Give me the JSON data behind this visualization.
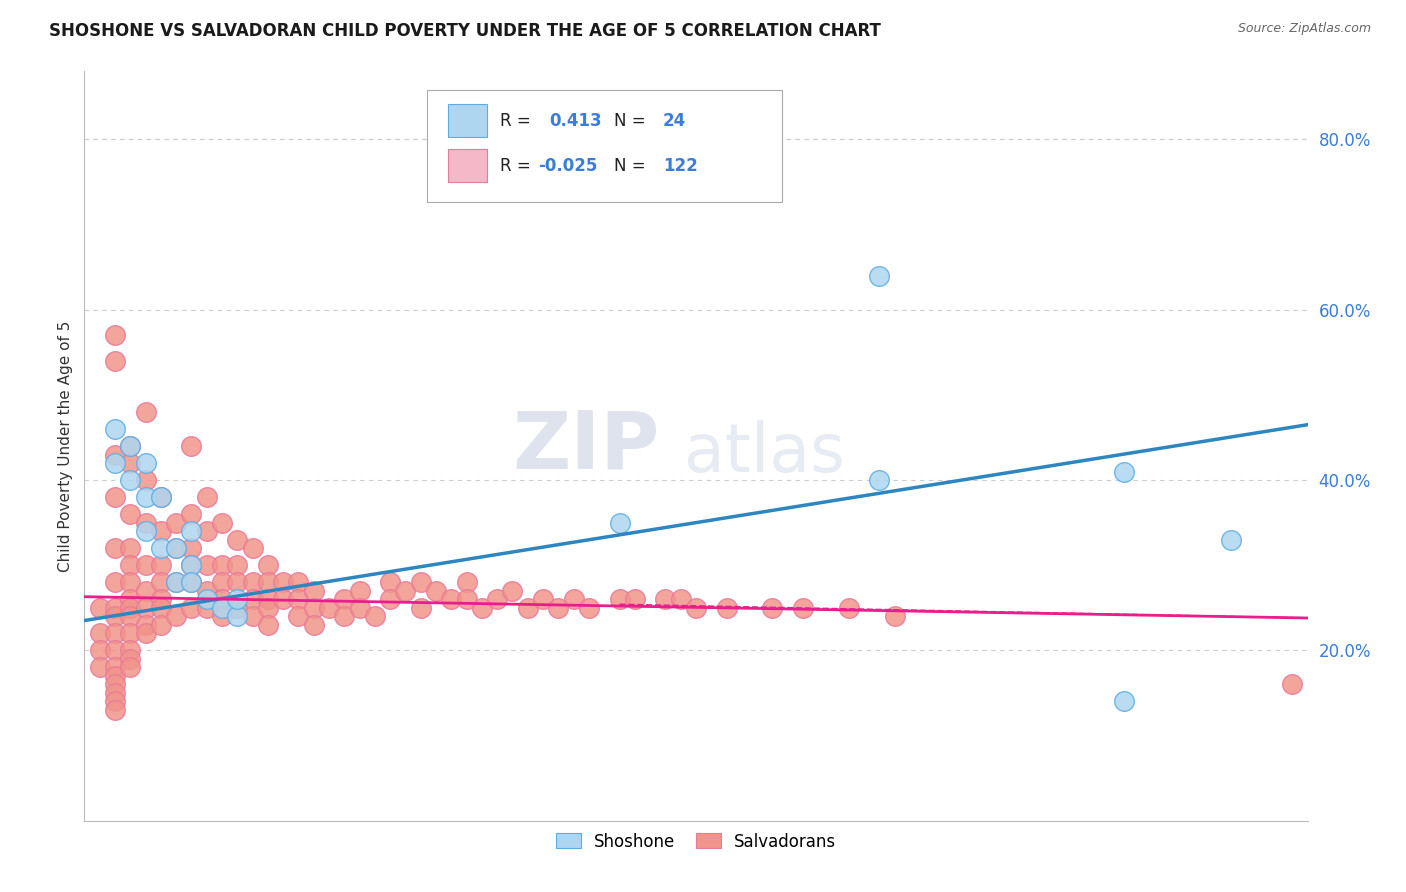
{
  "title": "SHOSHONE VS SALVADORAN CHILD POVERTY UNDER THE AGE OF 5 CORRELATION CHART",
  "source": "Source: ZipAtlas.com",
  "ylabel": "Child Poverty Under the Age of 5",
  "ylabel_right_ticks": [
    "20.0%",
    "40.0%",
    "60.0%",
    "80.0%"
  ],
  "ylabel_right_vals": [
    0.2,
    0.4,
    0.6,
    0.8
  ],
  "xmin": 0.0,
  "xmax": 0.8,
  "ymin": 0.0,
  "ymax": 0.88,
  "shoshone_color": "#AED6F1",
  "salvadoran_color": "#F1948A",
  "shoshone_edge_color": "#5DADE2",
  "salvadoran_edge_color": "#E87A9A",
  "shoshone_line_color": "#2E86C1",
  "salvadoran_line_color": "#E91E8C",
  "R_shoshone": 0.413,
  "N_shoshone": 24,
  "R_salvadoran": -0.025,
  "N_salvadoran": 122,
  "legend_R1": "0.413",
  "legend_N1": "24",
  "legend_R2": "-0.025",
  "legend_N2": "122",
  "shoshone_x": [
    0.02,
    0.02,
    0.03,
    0.03,
    0.04,
    0.04,
    0.04,
    0.05,
    0.05,
    0.06,
    0.06,
    0.07,
    0.07,
    0.07,
    0.08,
    0.09,
    0.1,
    0.1,
    0.35,
    0.52,
    0.52,
    0.68,
    0.68,
    0.75
  ],
  "shoshone_y": [
    0.46,
    0.42,
    0.44,
    0.4,
    0.38,
    0.42,
    0.34,
    0.38,
    0.32,
    0.32,
    0.28,
    0.3,
    0.34,
    0.28,
    0.26,
    0.25,
    0.24,
    0.26,
    0.35,
    0.64,
    0.4,
    0.41,
    0.14,
    0.33
  ],
  "salvadoran_x": [
    0.01,
    0.01,
    0.01,
    0.01,
    0.02,
    0.02,
    0.02,
    0.02,
    0.02,
    0.02,
    0.02,
    0.02,
    0.02,
    0.02,
    0.02,
    0.02,
    0.02,
    0.02,
    0.02,
    0.02,
    0.03,
    0.03,
    0.03,
    0.03,
    0.03,
    0.03,
    0.03,
    0.03,
    0.03,
    0.03,
    0.03,
    0.03,
    0.03,
    0.04,
    0.04,
    0.04,
    0.04,
    0.04,
    0.04,
    0.04,
    0.04,
    0.05,
    0.05,
    0.05,
    0.05,
    0.05,
    0.05,
    0.05,
    0.06,
    0.06,
    0.06,
    0.06,
    0.07,
    0.07,
    0.07,
    0.07,
    0.07,
    0.07,
    0.08,
    0.08,
    0.08,
    0.08,
    0.08,
    0.09,
    0.09,
    0.09,
    0.09,
    0.09,
    0.1,
    0.1,
    0.1,
    0.1,
    0.11,
    0.11,
    0.11,
    0.11,
    0.12,
    0.12,
    0.12,
    0.12,
    0.12,
    0.13,
    0.13,
    0.14,
    0.14,
    0.14,
    0.15,
    0.15,
    0.15,
    0.16,
    0.17,
    0.17,
    0.18,
    0.18,
    0.19,
    0.2,
    0.2,
    0.21,
    0.22,
    0.22,
    0.23,
    0.24,
    0.25,
    0.25,
    0.26,
    0.27,
    0.28,
    0.29,
    0.3,
    0.31,
    0.32,
    0.33,
    0.35,
    0.36,
    0.38,
    0.39,
    0.4,
    0.42,
    0.45,
    0.47,
    0.5,
    0.53,
    0.79
  ],
  "salvadoran_y": [
    0.25,
    0.22,
    0.2,
    0.18,
    0.57,
    0.54,
    0.43,
    0.38,
    0.32,
    0.28,
    0.25,
    0.24,
    0.22,
    0.2,
    0.18,
    0.17,
    0.16,
    0.15,
    0.14,
    0.13,
    0.44,
    0.42,
    0.36,
    0.32,
    0.3,
    0.28,
    0.26,
    0.25,
    0.24,
    0.22,
    0.2,
    0.19,
    0.18,
    0.48,
    0.4,
    0.35,
    0.3,
    0.27,
    0.25,
    0.23,
    0.22,
    0.38,
    0.34,
    0.3,
    0.28,
    0.26,
    0.25,
    0.23,
    0.35,
    0.32,
    0.28,
    0.24,
    0.44,
    0.36,
    0.32,
    0.3,
    0.28,
    0.25,
    0.38,
    0.34,
    0.3,
    0.27,
    0.25,
    0.35,
    0.3,
    0.28,
    0.26,
    0.24,
    0.33,
    0.3,
    0.28,
    0.25,
    0.32,
    0.28,
    0.26,
    0.24,
    0.3,
    0.28,
    0.26,
    0.25,
    0.23,
    0.28,
    0.26,
    0.28,
    0.26,
    0.24,
    0.27,
    0.25,
    0.23,
    0.25,
    0.26,
    0.24,
    0.27,
    0.25,
    0.24,
    0.28,
    0.26,
    0.27,
    0.28,
    0.25,
    0.27,
    0.26,
    0.28,
    0.26,
    0.25,
    0.26,
    0.27,
    0.25,
    0.26,
    0.25,
    0.26,
    0.25,
    0.26,
    0.26,
    0.26,
    0.26,
    0.25,
    0.25,
    0.25,
    0.25,
    0.25,
    0.24,
    0.16
  ],
  "watermark_ZIP": "ZIP",
  "watermark_atlas": "atlas",
  "background_color": "#FFFFFF",
  "grid_color": "#CCCCCC",
  "fig_width": 14.06,
  "fig_height": 8.92
}
